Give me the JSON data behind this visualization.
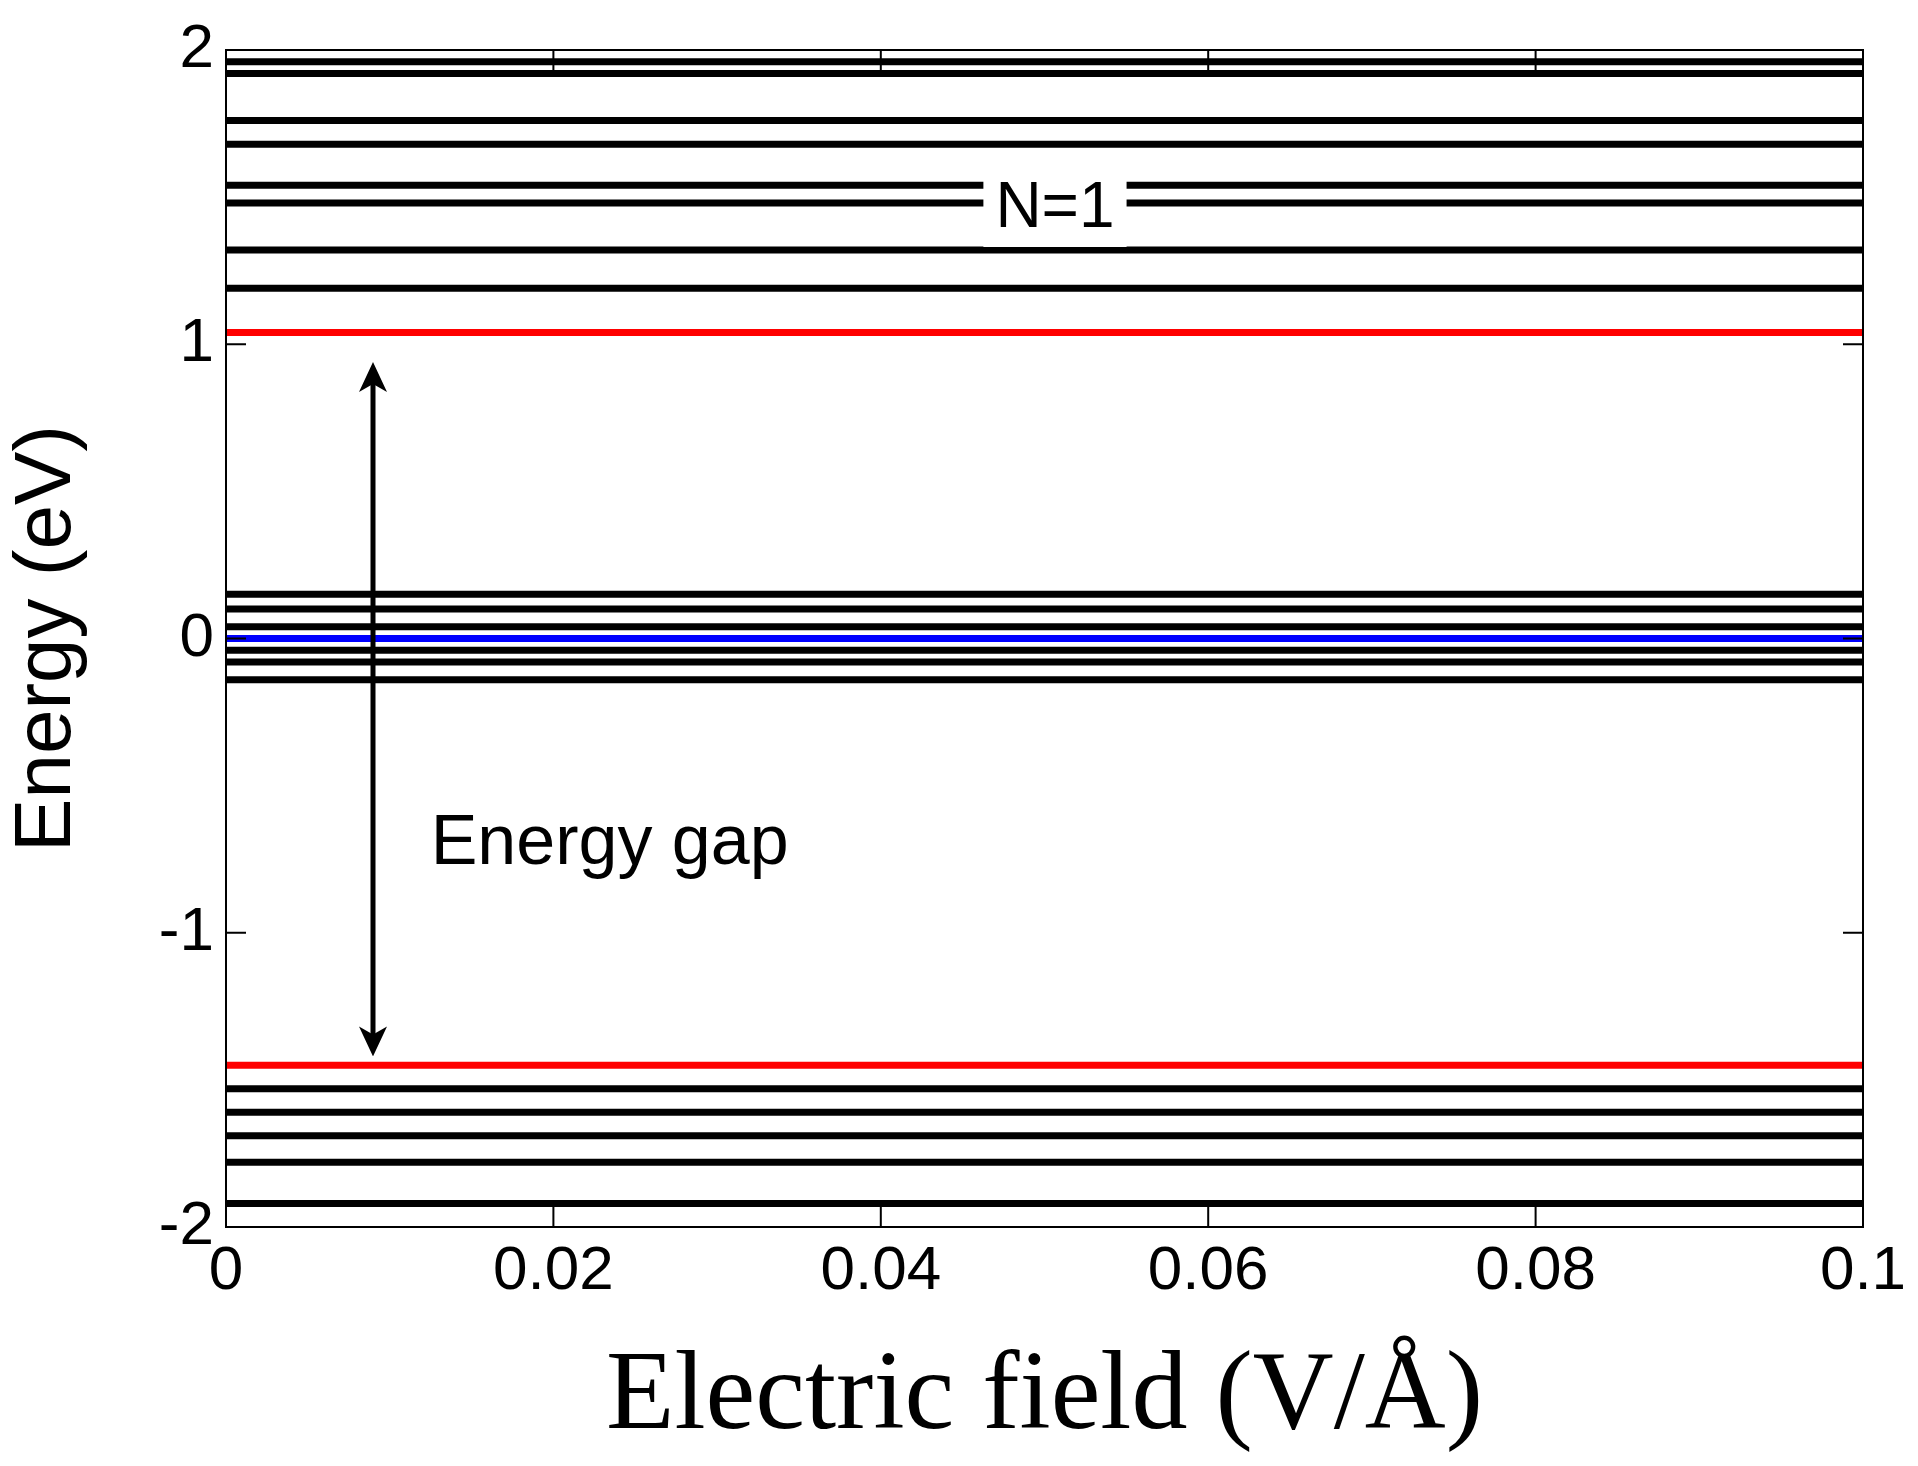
{
  "chart_data": {
    "type": "line",
    "xlabel": "Electric field (V/Å)",
    "ylabel": "Energy (eV)",
    "x": [
      0,
      0.1
    ],
    "series": [
      {
        "color": "#000000",
        "values": [
          1.96,
          1.96
        ]
      },
      {
        "color": "#000000",
        "values": [
          1.92,
          1.92
        ]
      },
      {
        "color": "#000000",
        "values": [
          1.76,
          1.76
        ]
      },
      {
        "color": "#000000",
        "values": [
          1.68,
          1.68
        ]
      },
      {
        "color": "#000000",
        "values": [
          1.54,
          1.54
        ]
      },
      {
        "color": "#000000",
        "values": [
          1.48,
          1.48
        ]
      },
      {
        "color": "#000000",
        "values": [
          1.32,
          1.32
        ]
      },
      {
        "color": "#000000",
        "values": [
          1.19,
          1.19
        ]
      },
      {
        "color": "#ff0000",
        "values": [
          1.04,
          1.04
        ]
      },
      {
        "color": "#000000",
        "values": [
          0.15,
          0.15
        ]
      },
      {
        "color": "#000000",
        "values": [
          0.1,
          0.1
        ]
      },
      {
        "color": "#000000",
        "values": [
          0.04,
          0.04
        ]
      },
      {
        "color": "#0000ff",
        "values": [
          0,
          0
        ]
      },
      {
        "color": "#000000",
        "values": [
          -0.04,
          -0.04
        ]
      },
      {
        "color": "#000000",
        "values": [
          -0.08,
          -0.08
        ]
      },
      {
        "color": "#000000",
        "values": [
          -0.14,
          -0.14
        ]
      },
      {
        "color": "#ff0000",
        "values": [
          -1.45,
          -1.45
        ]
      },
      {
        "color": "#000000",
        "values": [
          -1.53,
          -1.53
        ]
      },
      {
        "color": "#000000",
        "values": [
          -1.61,
          -1.61
        ]
      },
      {
        "color": "#000000",
        "values": [
          -1.69,
          -1.69
        ]
      },
      {
        "color": "#000000",
        "values": [
          -1.78,
          -1.78
        ]
      },
      {
        "color": "#000000",
        "values": [
          -1.92,
          -1.92
        ]
      }
    ],
    "xlim": [
      0,
      0.1
    ],
    "xticks": [
      0,
      0.02,
      0.04,
      0.06,
      0.08,
      0.1
    ],
    "ylim": [
      -2,
      2
    ],
    "yticks": [
      -2,
      -1,
      0,
      1,
      2
    ],
    "annotations": [
      "N=1",
      "Energy gap"
    ],
    "legend": false,
    "grid": false
  }
}
